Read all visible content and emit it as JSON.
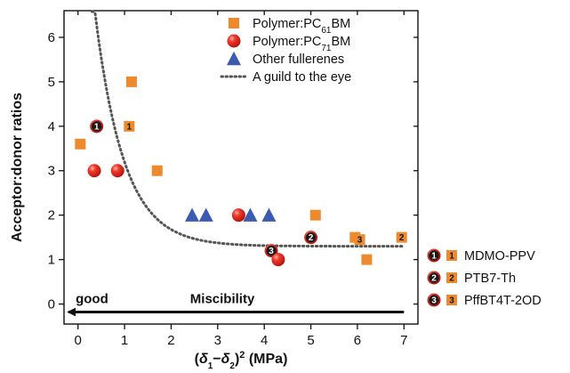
{
  "chart_data": {
    "type": "scatter",
    "xlabel_parts": [
      "(",
      "δ",
      "1",
      "−",
      "δ",
      "2",
      ")",
      "2",
      " (MPa)"
    ],
    "ylabel": "Acceptor:donor ratios",
    "xlim": [
      -0.3,
      7.3
    ],
    "ylim": [
      -0.45,
      6.6
    ],
    "xticks": [
      "0",
      "1",
      "2",
      "3",
      "4",
      "5",
      "6",
      "7"
    ],
    "yticks": [
      "0",
      "1",
      "2",
      "3",
      "4",
      "5",
      "6"
    ],
    "grid": false,
    "legend_position": "top-right",
    "legend": [
      {
        "marker": "square",
        "parts": [
          "Polymer:PC",
          "61",
          "BM"
        ]
      },
      {
        "marker": "circle",
        "parts": [
          "Polymer:PC",
          "71",
          "BM"
        ]
      },
      {
        "marker": "triangle",
        "parts": [
          "Other fullerenes"
        ]
      },
      {
        "marker": "dotted-line",
        "parts": [
          "A guild to the eye"
        ]
      }
    ],
    "series": [
      {
        "marker": "square",
        "points": [
          {
            "x": 0.05,
            "y": 3.6,
            "label": ""
          },
          {
            "x": 1.1,
            "y": 4.0,
            "label": "1"
          },
          {
            "x": 1.15,
            "y": 5.0,
            "label": ""
          },
          {
            "x": 1.7,
            "y": 3.0,
            "label": ""
          },
          {
            "x": 5.1,
            "y": 2.0,
            "label": ""
          },
          {
            "x": 5.95,
            "y": 1.5,
            "label": ""
          },
          {
            "x": 6.05,
            "y": 1.45,
            "label": "3"
          },
          {
            "x": 6.2,
            "y": 1.0,
            "label": ""
          },
          {
            "x": 6.95,
            "y": 1.5,
            "label": "2"
          }
        ]
      },
      {
        "marker": "circle",
        "points": [
          {
            "x": 0.4,
            "y": 4.0,
            "label": "1"
          },
          {
            "x": 0.35,
            "y": 3.0,
            "label": ""
          },
          {
            "x": 0.85,
            "y": 3.0,
            "label": ""
          },
          {
            "x": 3.45,
            "y": 2.0,
            "label": ""
          },
          {
            "x": 5.0,
            "y": 1.5,
            "label": "2"
          },
          {
            "x": 4.15,
            "y": 1.2,
            "label": "3"
          },
          {
            "x": 4.3,
            "y": 1.0,
            "label": ""
          }
        ]
      },
      {
        "marker": "triangle",
        "points": [
          {
            "x": 2.45,
            "y": 2.0
          },
          {
            "x": 2.75,
            "y": 2.0
          },
          {
            "x": 3.7,
            "y": 2.0
          },
          {
            "x": 4.1,
            "y": 2.0
          }
        ]
      }
    ],
    "guide_curve": {
      "style": "dotted",
      "equation": "y = 1.3 + 9.5 * exp(-x / 0.62)",
      "x_range": [
        0.3,
        7.0
      ]
    },
    "annotations": {
      "left": "good",
      "center": "Miscibility",
      "arrow_from_x": 7.0,
      "arrow_to_x": -0.2,
      "arrow_y": -0.18
    },
    "polymer_key": [
      {
        "number": "1",
        "name": "MDMO-PPV"
      },
      {
        "number": "2",
        "name": "PTB7-Th"
      },
      {
        "number": "3",
        "name": "PffBT4T-2OD"
      }
    ],
    "colors": {
      "square": "#ee8a2e",
      "circle": "#e52620",
      "triangle": "#3a5bb0",
      "guide": "#555555",
      "axis": "#111111"
    }
  }
}
